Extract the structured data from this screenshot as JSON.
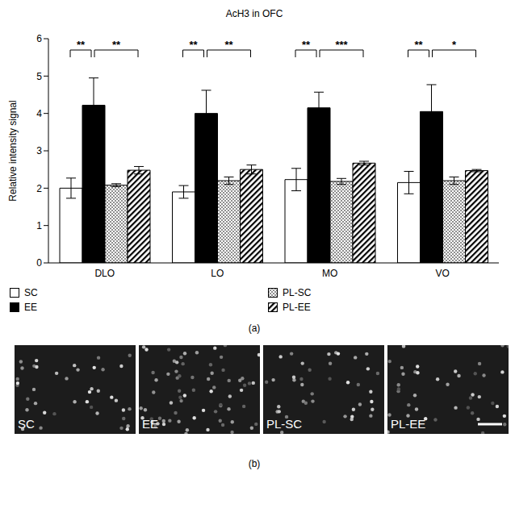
{
  "chart_data": {
    "type": "bar",
    "title": "AcH3 in OFC",
    "y_label": "Relative intensity signal",
    "categories": [
      "DLO",
      "LO",
      "MO",
      "VO"
    ],
    "series": [
      {
        "name": "SC",
        "color": "#ffffff",
        "values": [
          2.0,
          1.9,
          2.23,
          2.15
        ],
        "errors": [
          0.27,
          0.17,
          0.3,
          0.3
        ]
      },
      {
        "name": "EE",
        "color": "#000000",
        "values": [
          4.22,
          4.0,
          4.15,
          4.05
        ],
        "errors": [
          0.73,
          0.62,
          0.42,
          0.72
        ]
      },
      {
        "name": "PL-SC",
        "color": "#ffffff",
        "values": [
          2.08,
          2.2,
          2.18,
          2.2
        ],
        "errors": [
          0.04,
          0.1,
          0.08,
          0.1
        ]
      },
      {
        "name": "PL-EE",
        "color": "#ffffff",
        "values": [
          2.48,
          2.5,
          2.67,
          2.47
        ],
        "errors": [
          0.1,
          0.12,
          0.05,
          0.03
        ]
      }
    ],
    "ylim": [
      0,
      6
    ],
    "yticks": [
      0,
      1,
      2,
      3,
      4,
      5,
      6
    ],
    "annotations": [
      {
        "category": "DLO",
        "from": "SC",
        "to": "EE",
        "text": "**"
      },
      {
        "category": "DLO",
        "from": "EE",
        "to": "PL-EE",
        "text": "**"
      },
      {
        "category": "LO",
        "from": "SC",
        "to": "EE",
        "text": "**"
      },
      {
        "category": "LO",
        "from": "EE",
        "to": "PL-EE",
        "text": "**"
      },
      {
        "category": "MO",
        "from": "SC",
        "to": "EE",
        "text": "**"
      },
      {
        "category": "MO",
        "from": "EE",
        "to": "PL-EE",
        "text": "***"
      },
      {
        "category": "VO",
        "from": "SC",
        "to": "EE",
        "text": "**"
      },
      {
        "category": "VO",
        "from": "EE",
        "to": "PL-EE",
        "text": "*"
      }
    ],
    "panel_label": "(a)"
  },
  "panel_b": {
    "panel_label": "(b)",
    "images": [
      "SC",
      "EE",
      "PL-SC",
      "PL-EE"
    ]
  }
}
